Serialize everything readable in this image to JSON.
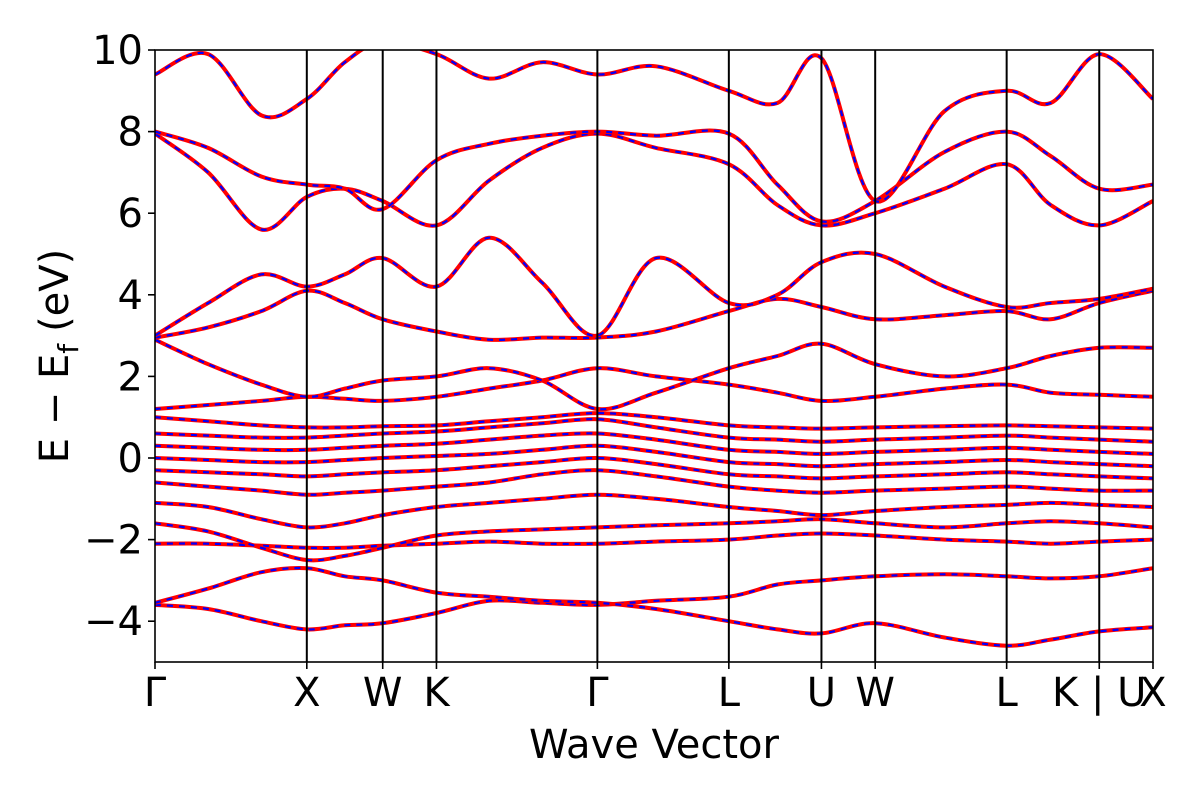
{
  "chart_data": {
    "type": "line",
    "title": "",
    "xlabel": "Wave Vector",
    "ylabel": "E − E_f (eV)",
    "ylabel_parts": {
      "main": "E − E",
      "sub": "f",
      "unit": "(eV)"
    },
    "ylim": [
      -5,
      10
    ],
    "yticks": [
      10,
      8,
      6,
      4,
      2,
      0,
      -2,
      -4
    ],
    "ytick_labels": [
      "10",
      "8",
      "6",
      "4",
      "2",
      "0",
      "−2",
      "−4"
    ],
    "kpath": {
      "labels": [
        "Γ",
        "X",
        "W",
        "K",
        "Γ",
        "L",
        "U",
        "W",
        "L",
        "K | U",
        "X"
      ],
      "positions": [
        0,
        1.0,
        1.5,
        1.854,
        2.914,
        3.78,
        4.39,
        4.744,
        5.61,
        6.22,
        6.574
      ]
    },
    "grid": false,
    "legend": "none",
    "series_styles": [
      {
        "style": "solid",
        "color": "#ff0000"
      },
      {
        "style": "dashed",
        "color": "#0000ff"
      }
    ],
    "series": [
      {
        "x": [
          0,
          0.35,
          0.7,
          1.0,
          1.25,
          1.5,
          1.854,
          2.2,
          2.55,
          2.914,
          3.3,
          3.78,
          4.1,
          4.39,
          4.744,
          5.2,
          5.61,
          5.9,
          6.22,
          6.574
        ],
        "values": [
          -3.6,
          -3.7,
          -4.0,
          -4.2,
          -4.1,
          -4.05,
          -3.8,
          -3.5,
          -3.55,
          -3.6,
          -3.5,
          -3.4,
          -3.1,
          -3.0,
          -2.9,
          -2.85,
          -2.9,
          -2.95,
          -2.9,
          -2.7
        ]
      },
      {
        "x": [
          0,
          0.35,
          0.7,
          1.0,
          1.25,
          1.5,
          1.854,
          2.2,
          2.55,
          2.914,
          3.3,
          3.78,
          4.1,
          4.39,
          4.744,
          5.2,
          5.61,
          5.9,
          6.22,
          6.574
        ],
        "values": [
          -3.55,
          -3.2,
          -2.8,
          -2.7,
          -2.9,
          -3.0,
          -3.3,
          -3.4,
          -3.5,
          -3.55,
          -3.7,
          -4.0,
          -4.2,
          -4.3,
          -4.05,
          -4.4,
          -4.6,
          -4.45,
          -4.25,
          -4.15
        ]
      },
      {
        "x": [
          0,
          0.35,
          0.7,
          1.0,
          1.25,
          1.5,
          1.854,
          2.2,
          2.55,
          2.914,
          3.3,
          3.78,
          4.1,
          4.39,
          4.744,
          5.2,
          5.61,
          5.9,
          6.22,
          6.574
        ],
        "values": [
          -2.1,
          -2.1,
          -2.15,
          -2.2,
          -2.2,
          -2.15,
          -2.1,
          -2.05,
          -2.1,
          -2.1,
          -2.05,
          -2.0,
          -1.9,
          -1.85,
          -1.9,
          -2.0,
          -2.05,
          -2.1,
          -2.05,
          -2.0
        ]
      },
      {
        "x": [
          0,
          0.35,
          0.7,
          1.0,
          1.25,
          1.5,
          1.854,
          2.2,
          2.55,
          2.914,
          3.3,
          3.78,
          4.1,
          4.39,
          4.744,
          5.2,
          5.61,
          5.9,
          6.22,
          6.574
        ],
        "values": [
          -1.6,
          -1.8,
          -2.2,
          -2.5,
          -2.4,
          -2.2,
          -1.9,
          -1.8,
          -1.75,
          -1.7,
          -1.65,
          -1.6,
          -1.55,
          -1.5,
          -1.6,
          -1.7,
          -1.6,
          -1.55,
          -1.6,
          -1.7
        ]
      },
      {
        "x": [
          0,
          0.35,
          0.7,
          1.0,
          1.25,
          1.5,
          1.854,
          2.2,
          2.55,
          2.914,
          3.3,
          3.78,
          4.1,
          4.39,
          4.744,
          5.2,
          5.61,
          5.9,
          6.22,
          6.574
        ],
        "values": [
          -1.1,
          -1.2,
          -1.5,
          -1.7,
          -1.6,
          -1.4,
          -1.2,
          -1.1,
          -1.0,
          -0.9,
          -1.0,
          -1.2,
          -1.3,
          -1.4,
          -1.3,
          -1.2,
          -1.15,
          -1.1,
          -1.15,
          -1.2
        ]
      },
      {
        "x": [
          0,
          0.35,
          0.7,
          1.0,
          1.25,
          1.5,
          1.854,
          2.2,
          2.55,
          2.914,
          3.3,
          3.78,
          4.1,
          4.39,
          4.744,
          5.2,
          5.61,
          5.9,
          6.22,
          6.574
        ],
        "values": [
          -0.6,
          -0.7,
          -0.8,
          -0.9,
          -0.85,
          -0.8,
          -0.7,
          -0.6,
          -0.4,
          -0.3,
          -0.45,
          -0.7,
          -0.8,
          -0.85,
          -0.8,
          -0.75,
          -0.7,
          -0.75,
          -0.8,
          -0.8
        ]
      },
      {
        "x": [
          0,
          0.35,
          0.7,
          1.0,
          1.25,
          1.5,
          1.854,
          2.2,
          2.55,
          2.914,
          3.3,
          3.78,
          4.1,
          4.39,
          4.744,
          5.2,
          5.61,
          5.9,
          6.22,
          6.574
        ],
        "values": [
          -0.3,
          -0.35,
          -0.4,
          -0.45,
          -0.4,
          -0.35,
          -0.3,
          -0.2,
          -0.1,
          0.0,
          -0.15,
          -0.4,
          -0.45,
          -0.5,
          -0.45,
          -0.4,
          -0.35,
          -0.4,
          -0.45,
          -0.5
        ]
      },
      {
        "x": [
          0,
          0.35,
          0.7,
          1.0,
          1.25,
          1.5,
          1.854,
          2.2,
          2.55,
          2.914,
          3.3,
          3.78,
          4.1,
          4.39,
          4.744,
          5.2,
          5.61,
          5.9,
          6.22,
          6.574
        ],
        "values": [
          0.0,
          -0.05,
          -0.1,
          -0.1,
          -0.05,
          0.0,
          0.05,
          0.1,
          0.2,
          0.3,
          0.15,
          -0.1,
          -0.15,
          -0.2,
          -0.15,
          -0.1,
          -0.05,
          -0.1,
          -0.15,
          -0.2
        ]
      },
      {
        "x": [
          0,
          0.35,
          0.7,
          1.0,
          1.25,
          1.5,
          1.854,
          2.2,
          2.55,
          2.914,
          3.3,
          3.78,
          4.1,
          4.39,
          4.744,
          5.2,
          5.61,
          5.9,
          6.22,
          6.574
        ],
        "values": [
          0.3,
          0.25,
          0.2,
          0.2,
          0.25,
          0.3,
          0.35,
          0.45,
          0.55,
          0.6,
          0.45,
          0.2,
          0.15,
          0.1,
          0.15,
          0.2,
          0.25,
          0.2,
          0.15,
          0.1
        ]
      },
      {
        "x": [
          0,
          0.35,
          0.7,
          1.0,
          1.25,
          1.5,
          1.854,
          2.2,
          2.55,
          2.914,
          3.3,
          3.78,
          4.1,
          4.39,
          4.744,
          5.2,
          5.61,
          5.9,
          6.22,
          6.574
        ],
        "values": [
          0.6,
          0.55,
          0.5,
          0.5,
          0.55,
          0.6,
          0.65,
          0.75,
          0.85,
          0.95,
          0.75,
          0.5,
          0.45,
          0.4,
          0.45,
          0.5,
          0.55,
          0.5,
          0.45,
          0.4
        ]
      },
      {
        "x": [
          0,
          0.35,
          0.7,
          1.0,
          1.25,
          1.5,
          1.854,
          2.2,
          2.55,
          2.914,
          3.3,
          3.78,
          4.1,
          4.39,
          4.744,
          5.2,
          5.61,
          5.9,
          6.22,
          6.574
        ],
        "values": [
          1.0,
          0.9,
          0.8,
          0.75,
          0.75,
          0.78,
          0.8,
          0.9,
          1.0,
          1.1,
          1.0,
          0.8,
          0.75,
          0.72,
          0.75,
          0.78,
          0.8,
          0.78,
          0.75,
          0.72
        ]
      },
      {
        "x": [
          0,
          0.35,
          0.7,
          1.0,
          1.25,
          1.5,
          1.854,
          2.2,
          2.55,
          2.914,
          3.3,
          3.78,
          4.1,
          4.39,
          4.744,
          5.2,
          5.61,
          5.9,
          6.22,
          6.574
        ],
        "values": [
          1.2,
          1.3,
          1.4,
          1.5,
          1.45,
          1.4,
          1.5,
          1.7,
          1.9,
          2.2,
          2.0,
          1.8,
          1.6,
          1.4,
          1.5,
          1.7,
          1.8,
          1.6,
          1.55,
          1.5
        ]
      },
      {
        "x": [
          0,
          0.35,
          0.7,
          1.0,
          1.25,
          1.5,
          1.854,
          2.2,
          2.55,
          2.914,
          3.3,
          3.78,
          4.1,
          4.39,
          4.744,
          5.2,
          5.61,
          5.9,
          6.22,
          6.574
        ],
        "values": [
          2.9,
          2.3,
          1.8,
          1.5,
          1.7,
          1.9,
          2.0,
          2.2,
          1.9,
          1.2,
          1.6,
          2.2,
          2.5,
          2.8,
          2.3,
          2.0,
          2.2,
          2.5,
          2.7,
          2.7
        ]
      },
      {
        "x": [
          0,
          0.35,
          0.7,
          1.0,
          1.25,
          1.5,
          1.854,
          2.2,
          2.55,
          2.914,
          3.3,
          3.78,
          4.1,
          4.39,
          4.744,
          5.2,
          5.61,
          5.9,
          6.22,
          6.574
        ],
        "values": [
          2.95,
          3.2,
          3.6,
          4.1,
          3.8,
          3.4,
          3.1,
          2.9,
          2.95,
          2.95,
          3.1,
          3.6,
          3.9,
          3.7,
          3.4,
          3.5,
          3.6,
          3.4,
          3.8,
          4.1
        ]
      },
      {
        "x": [
          0,
          0.35,
          0.7,
          1.0,
          1.25,
          1.5,
          1.854,
          2.2,
          2.55,
          2.914,
          3.3,
          3.78,
          4.1,
          4.39,
          4.744,
          5.2,
          5.61,
          5.9,
          6.22,
          6.574
        ],
        "values": [
          3.0,
          3.8,
          4.5,
          4.2,
          4.5,
          4.9,
          4.2,
          5.4,
          4.3,
          3.0,
          4.9,
          3.8,
          4.0,
          4.8,
          5.0,
          4.2,
          3.7,
          3.8,
          3.9,
          4.15
        ]
      },
      {
        "x": [
          0,
          0.35,
          0.7,
          1.0,
          1.25,
          1.5,
          1.854,
          2.2,
          2.55,
          2.914,
          3.3,
          3.78,
          4.1,
          4.39,
          4.744,
          5.2,
          5.61,
          5.9,
          6.22,
          6.574
        ],
        "values": [
          7.95,
          7.0,
          5.6,
          6.4,
          6.6,
          6.3,
          5.7,
          6.8,
          7.6,
          7.95,
          7.6,
          7.2,
          6.2,
          5.7,
          6.0,
          6.6,
          7.2,
          6.2,
          5.7,
          6.3
        ]
      },
      {
        "x": [
          0,
          0.35,
          0.7,
          1.0,
          1.25,
          1.5,
          1.854,
          2.2,
          2.55,
          2.914,
          3.3,
          3.78,
          4.1,
          4.39,
          4.744,
          5.2,
          5.61,
          5.9,
          6.22,
          6.574
        ],
        "values": [
          8.0,
          7.6,
          6.9,
          6.7,
          6.6,
          6.1,
          7.3,
          7.7,
          7.9,
          8.0,
          7.9,
          7.95,
          6.7,
          5.8,
          6.3,
          7.5,
          8.0,
          7.4,
          6.6,
          6.7
        ]
      },
      {
        "x": [
          0,
          0.35,
          0.7,
          1.0,
          1.25,
          1.5,
          1.854,
          2.2,
          2.55,
          2.914,
          3.3,
          3.78,
          4.1,
          4.39,
          4.744,
          5.2,
          5.61,
          5.9,
          6.22,
          6.574
        ],
        "values": [
          9.4,
          9.9,
          8.4,
          8.8,
          9.7,
          10.2,
          9.9,
          9.3,
          9.7,
          9.4,
          9.6,
          9.0,
          8.7,
          9.8,
          6.3,
          8.5,
          9.0,
          8.7,
          9.9,
          8.8
        ]
      }
    ]
  }
}
